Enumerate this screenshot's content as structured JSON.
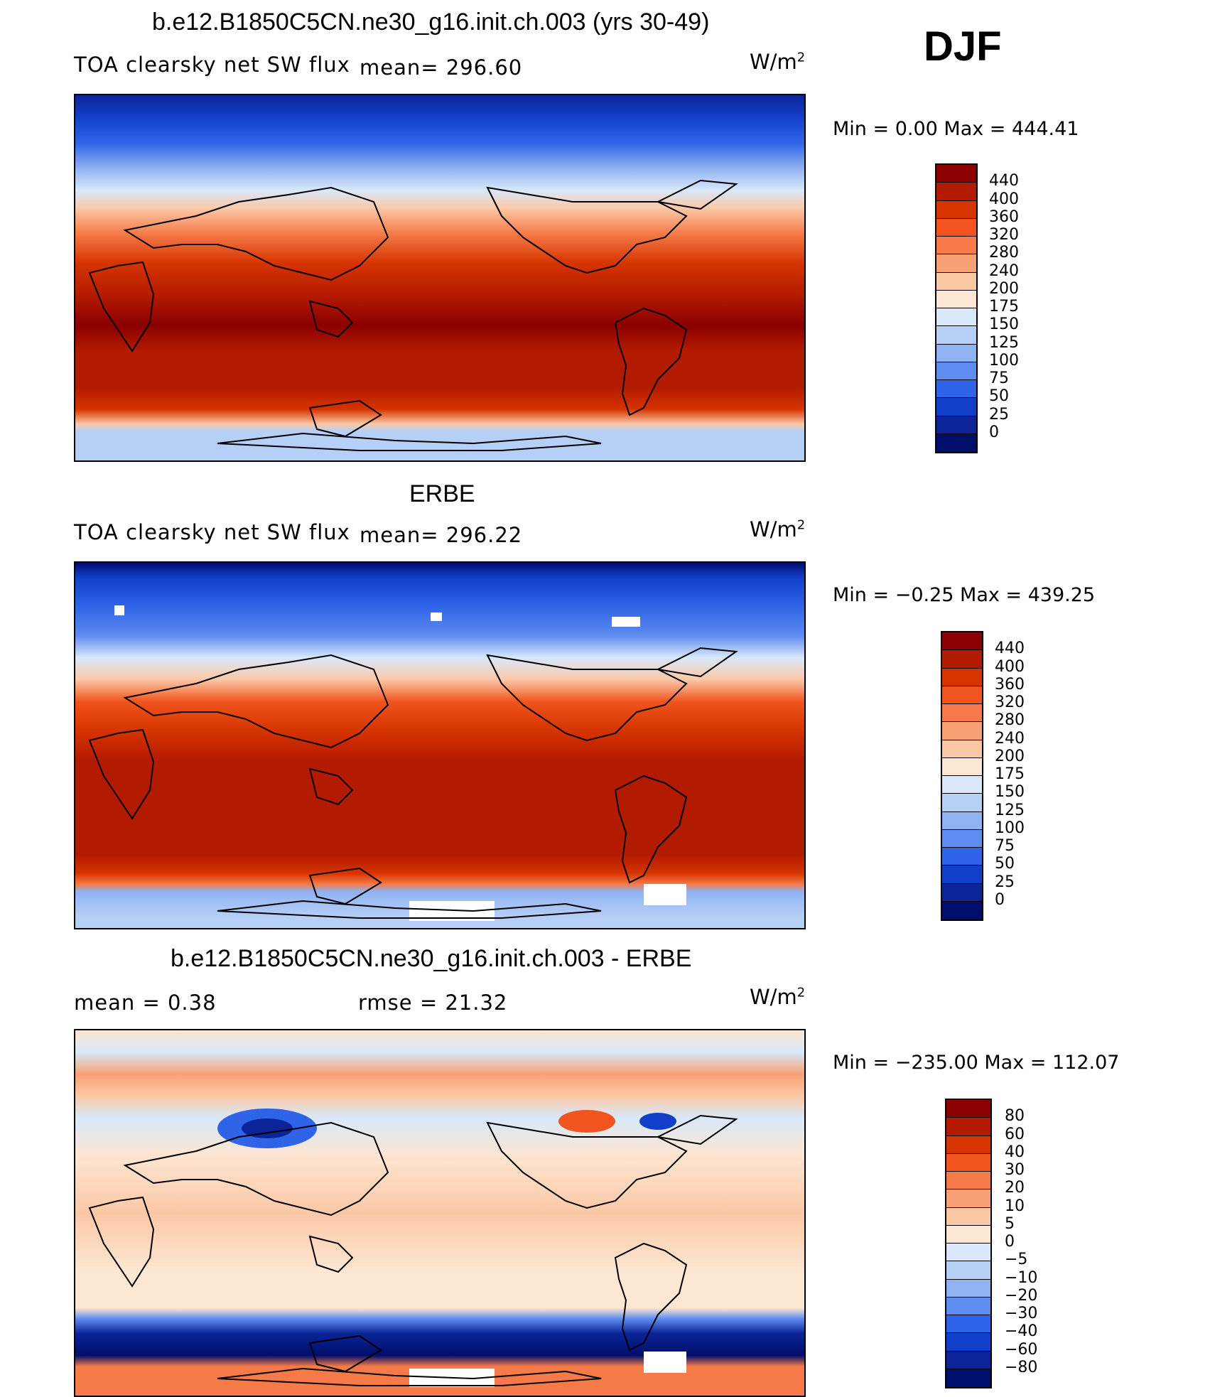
{
  "season": "DJF",
  "panels": [
    {
      "title": "b.e12.B1850C5CN.ne30_g16.init.ch.003 (yrs 30-49)",
      "variable": "TOA clearsky net SW flux",
      "stat": "mean=  296.60",
      "units_base": "W/m",
      "units_exp": "2",
      "min_max": "Min  =     0.00  Max  =  444.41",
      "colorbar_labels": [
        "440",
        "400",
        "360",
        "320",
        "280",
        "240",
        "200",
        "175",
        "150",
        "125",
        "100",
        "75",
        "50",
        "25",
        "0"
      ],
      "colorbar_colors": [
        "#8b0000",
        "#b31b00",
        "#d63400",
        "#f1541e",
        "#f57a47",
        "#f8a174",
        "#fbc8a6",
        "#fde6d2",
        "#d8e8fa",
        "#b6cff6",
        "#8fb2f2",
        "#5e8cf0",
        "#2f64e8",
        "#123fc9",
        "#0b2497",
        "#000e6b"
      ]
    },
    {
      "title": "ERBE",
      "variable": "TOA clearsky net SW flux",
      "stat": "mean=  296.22",
      "units_base": "W/m",
      "units_exp": "2",
      "min_max": "Min  =   −0.25  Max  =  439.25",
      "colorbar_labels": [
        "440",
        "400",
        "360",
        "320",
        "280",
        "240",
        "200",
        "175",
        "150",
        "125",
        "100",
        "75",
        "50",
        "25",
        "0"
      ],
      "colorbar_colors": [
        "#8b0000",
        "#b31b00",
        "#d63400",
        "#f1541e",
        "#f57a47",
        "#f8a174",
        "#fbc8a6",
        "#fde6d2",
        "#d8e8fa",
        "#b6cff6",
        "#8fb2f2",
        "#5e8cf0",
        "#2f64e8",
        "#123fc9",
        "#0b2497",
        "#000e6b"
      ]
    },
    {
      "title": "b.e12.B1850C5CN.ne30_g16.init.ch.003 - ERBE",
      "stat_mean": "mean  =     0.38",
      "stat_rmse": "rmse  =    21.32",
      "units_base": "W/m",
      "units_exp": "2",
      "min_max": "Min  = −235.00  Max  =  112.07",
      "colorbar_labels": [
        "80",
        "60",
        "40",
        "30",
        "20",
        "10",
        "5",
        "0",
        "−5",
        "−10",
        "−20",
        "−30",
        "−40",
        "−60",
        "−80"
      ],
      "colorbar_colors": [
        "#8b0000",
        "#b31b00",
        "#d63400",
        "#f1541e",
        "#f57a47",
        "#f8a174",
        "#fbc8a6",
        "#fde6d2",
        "#d8e8fa",
        "#b6cff6",
        "#8fb2f2",
        "#5e8cf0",
        "#2f64e8",
        "#123fc9",
        "#0b2497",
        "#000e6b"
      ]
    }
  ]
}
